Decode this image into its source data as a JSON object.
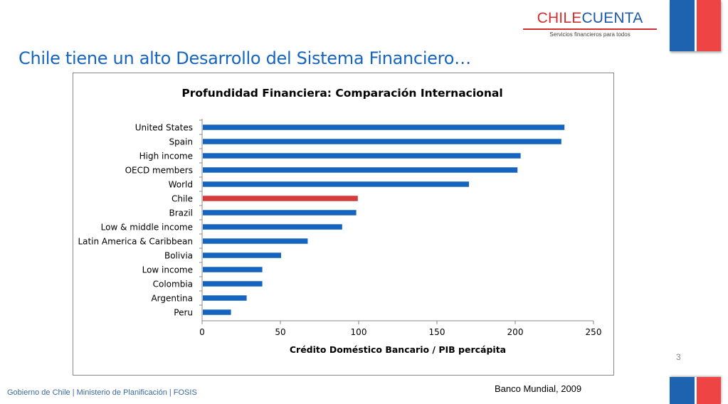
{
  "header": {
    "logo_part1": "CHILE",
    "logo_part2": "CUENTA",
    "logo_tagline": "Servicios financieros para todos",
    "title": "Chile tiene un alto Desarrollo del Sistema Financiero…"
  },
  "colors": {
    "bar_default": "#1565c0",
    "bar_highlight": "#d63a3a",
    "flag_blue": "#1e63b0",
    "flag_red": "#ef4444"
  },
  "chart_data": {
    "type": "bar",
    "orientation": "horizontal",
    "title": "Profundidad Financiera: Comparación Internacional",
    "xlabel": "Crédito Doméstico Bancario / PIB percápita",
    "ylabel": "",
    "categories": [
      "United States",
      "Spain",
      "High income",
      "OECD members",
      "World",
      "Chile",
      "Brazil",
      "Low & middle income",
      "Latin America & Caribbean",
      "Bolivia",
      "Low income",
      "Colombia",
      "Argentina",
      "Peru"
    ],
    "values": [
      231,
      229,
      203,
      201,
      170,
      99,
      98,
      89,
      67,
      50,
      38,
      38,
      28,
      18
    ],
    "highlight": "Chile",
    "xlim": [
      0,
      250
    ],
    "xticks": [
      0,
      50,
      100,
      150,
      200,
      250
    ],
    "grid": false,
    "legend": "none"
  },
  "footer": {
    "page_number": "3",
    "source": "Banco Mundial, 2009",
    "text": "Gobierno de Chile | Ministerio de Planificación | FOSIS"
  }
}
